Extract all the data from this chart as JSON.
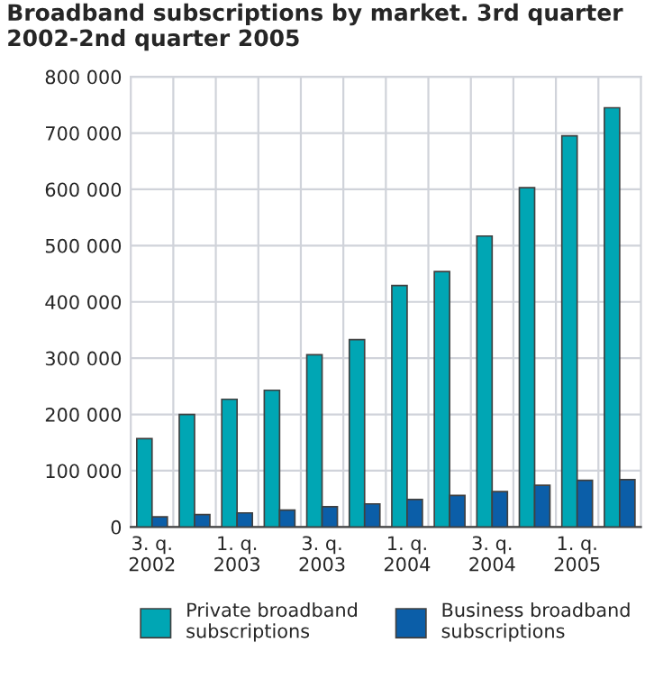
{
  "chart_data": {
    "type": "bar",
    "title": "Broadband subscriptions by market. 3rd quarter 2002-2nd quarter 2005",
    "categories": [
      "3. q.\n2002",
      null,
      "1. q.\n2003",
      null,
      "3. q.\n2003",
      null,
      "1. q.\n2004",
      null,
      "3. q.\n2004",
      null,
      "1. q.\n2005",
      null
    ],
    "series": [
      {
        "name": "Private broadband subscriptions",
        "color": "#00a6b4",
        "values": [
          157000,
          200000,
          227000,
          243000,
          306000,
          333000,
          429000,
          454000,
          517000,
          603000,
          695000,
          745000
        ]
      },
      {
        "name": "Business broadband subscriptions",
        "color": "#0b5ea8",
        "values": [
          18000,
          22000,
          25000,
          30000,
          36000,
          41000,
          49000,
          56000,
          63000,
          74000,
          83000,
          84000
        ]
      }
    ],
    "ylim": [
      0,
      800000
    ],
    "yticks": [
      0,
      {
        "value": 100000,
        "label": "100 000"
      },
      {
        "value": 200000,
        "label": "200 000"
      },
      {
        "value": 300000,
        "label": "300 000"
      },
      {
        "value": 400000,
        "label": "400 000"
      },
      {
        "value": 500000,
        "label": "500 000"
      },
      {
        "value": 600000,
        "label": "600 000"
      },
      {
        "value": 700000,
        "label": "700 000"
      },
      {
        "value": 800000,
        "label": "800 000"
      }
    ],
    "grid": true,
    "legend": "bottom"
  }
}
